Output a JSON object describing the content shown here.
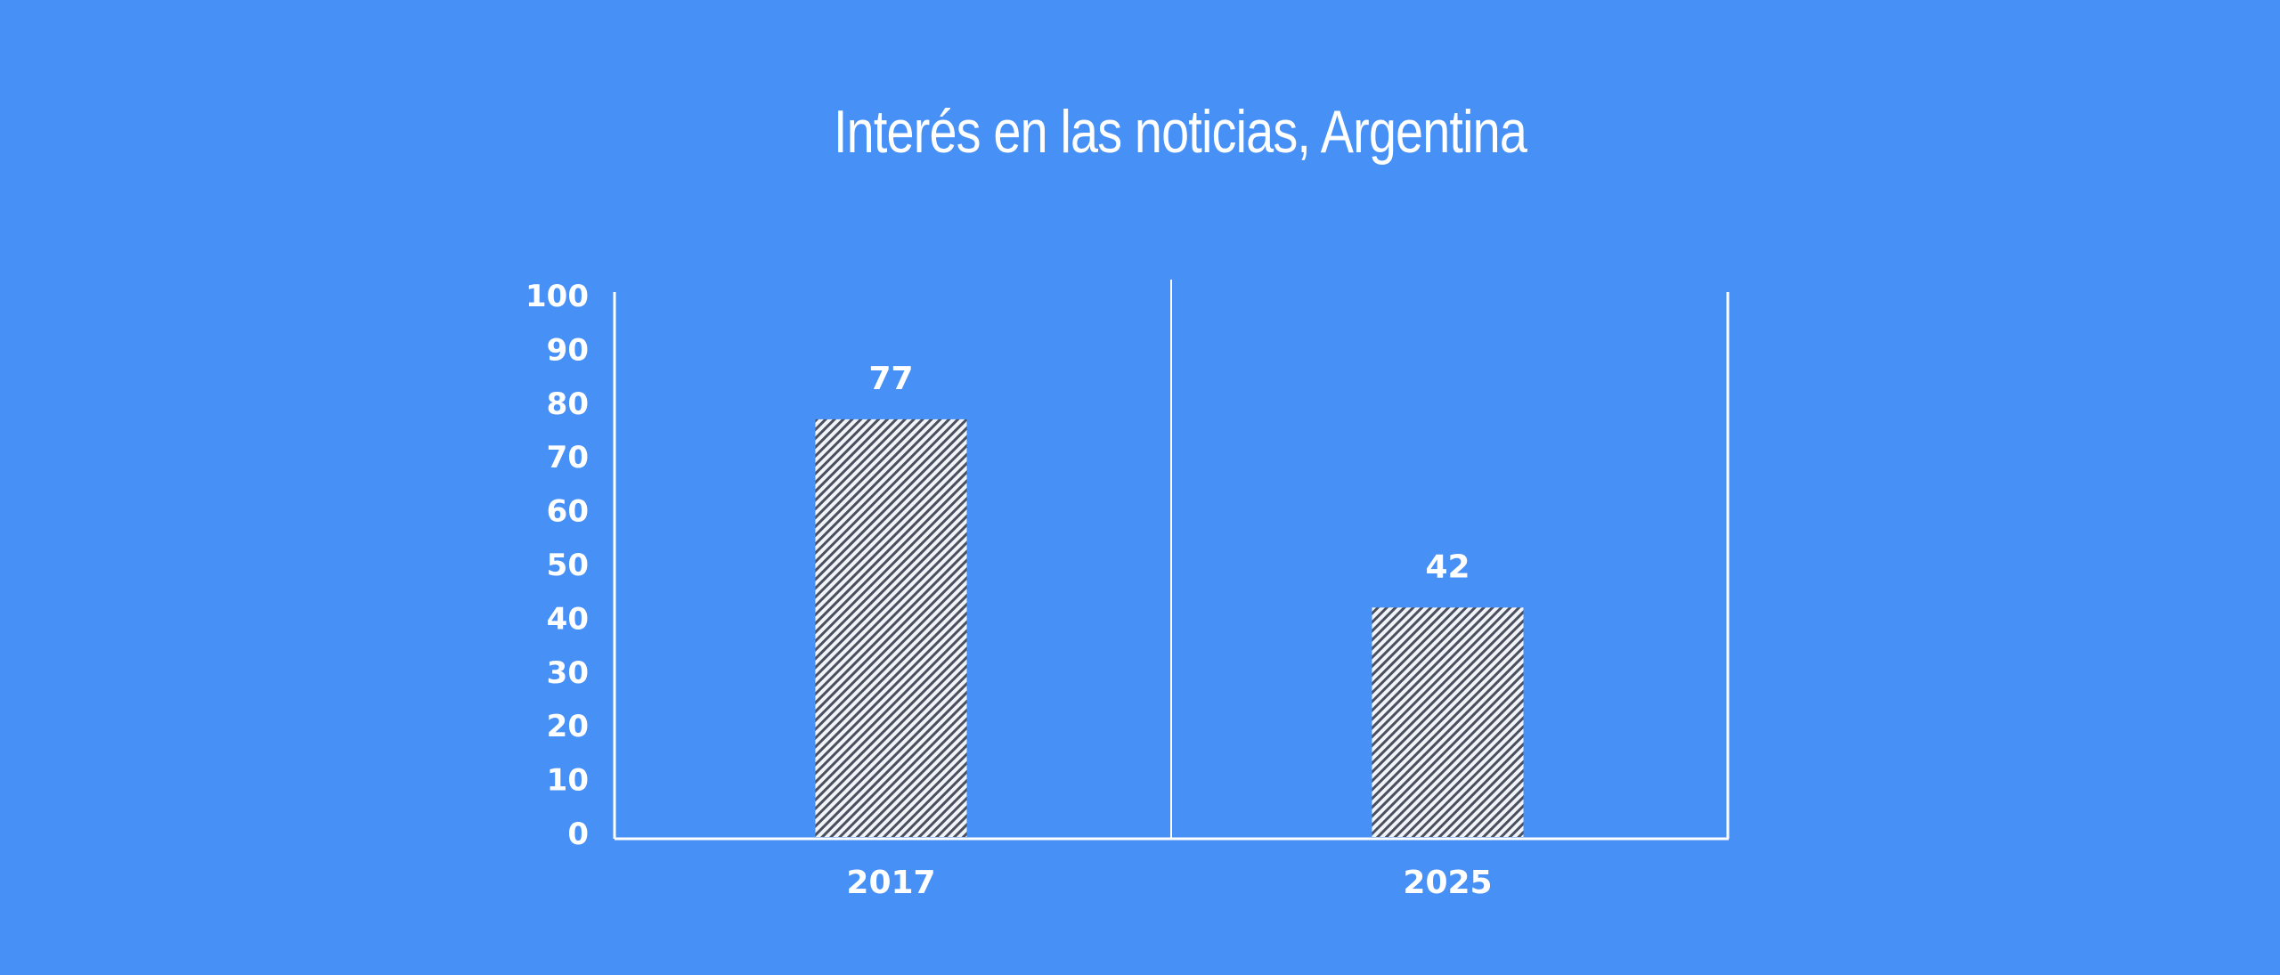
{
  "chart_data": {
    "type": "bar",
    "title": "Interés en las noticias, Argentina",
    "categories": [
      "2017",
      "2025"
    ],
    "values": [
      77,
      42
    ],
    "data_labels": [
      "77",
      "42"
    ],
    "xlabel": "",
    "ylabel": "",
    "ylim": [
      0,
      100
    ],
    "yticks": [
      0,
      10,
      20,
      30,
      40,
      50,
      60,
      70,
      80,
      90,
      100
    ],
    "grid": false,
    "legend": "none",
    "bar_fill": "diagonal-hatch",
    "colors": {
      "background": "#4790f6",
      "axis": "#ffffff",
      "bar_hatch": "#4a5060",
      "bar_base": "#f2f4f7",
      "text": "#ffffff"
    }
  }
}
